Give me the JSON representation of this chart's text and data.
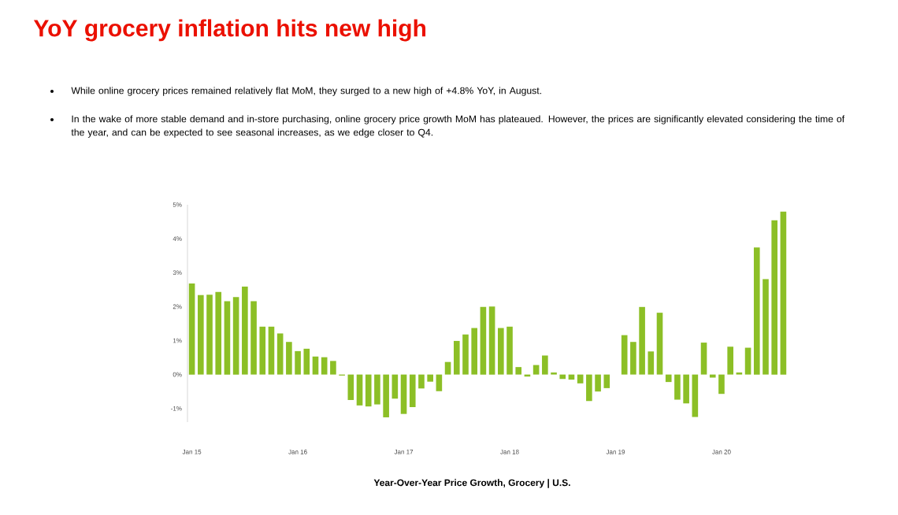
{
  "chart_data": {
    "type": "bar",
    "title": "YoY grocery inflation hits new high",
    "subtitle": "Year-Over-Year Price Growth, Grocery | U.S.",
    "annotations": [
      "While online grocery prices remained relatively flat MoM, they surged to a new high of +4.8% YoY, in August.",
      "In the wake of more stable demand and in-store purchasing, online grocery price growth MoM has plateaued. However, the prices are significantly elevated considering the time of the year, and can be expected to see seasonal increases, as we edge closer to Q4."
    ],
    "categories": [
      "Jan 15",
      null,
      null,
      null,
      null,
      null,
      null,
      null,
      null,
      null,
      null,
      null,
      "Jan 16",
      null,
      null,
      null,
      null,
      null,
      null,
      null,
      null,
      null,
      null,
      null,
      "Jan 17",
      null,
      null,
      null,
      null,
      null,
      null,
      null,
      null,
      null,
      null,
      null,
      "Jan 18",
      null,
      null,
      null,
      null,
      null,
      null,
      null,
      null,
      null,
      null,
      null,
      "Jan 19",
      null,
      null,
      null,
      null,
      null,
      null,
      null,
      null,
      null,
      null,
      null,
      "Jan 20",
      null,
      null,
      null,
      null,
      null,
      null,
      null
    ],
    "values": [
      2.68,
      2.34,
      2.35,
      2.43,
      2.16,
      2.28,
      2.59,
      2.16,
      1.41,
      1.41,
      1.21,
      0.96,
      0.69,
      0.76,
      0.53,
      0.51,
      0.4,
      -0.03,
      -0.75,
      -0.91,
      -0.94,
      -0.88,
      -1.26,
      -0.71,
      -1.16,
      -0.96,
      -0.41,
      -0.21,
      -0.49,
      0.37,
      0.99,
      1.18,
      1.37,
      1.99,
      2.0,
      1.37,
      1.41,
      0.22,
      -0.06,
      0.28,
      0.56,
      0.06,
      -0.13,
      -0.15,
      -0.26,
      -0.78,
      -0.5,
      -0.4,
      0.0,
      1.16,
      0.96,
      1.99,
      0.68,
      1.82,
      -0.22,
      -0.74,
      -0.85,
      -1.25,
      0.94,
      -0.09,
      -0.57,
      0.82,
      0.06,
      0.79,
      3.74,
      2.81,
      4.54,
      4.8
    ],
    "color": "#8cbf26",
    "ylim": [
      -1.4,
      5
    ],
    "yticks": [
      {
        "value": -1,
        "label": "-1%"
      },
      {
        "value": 0,
        "label": "0%"
      },
      {
        "value": 1,
        "label": "1%"
      },
      {
        "value": 2,
        "label": "2%"
      },
      {
        "value": 3,
        "label": "3%"
      },
      {
        "value": 4,
        "label": "4%"
      },
      {
        "value": 5,
        "label": "5%"
      }
    ],
    "grid": false
  }
}
